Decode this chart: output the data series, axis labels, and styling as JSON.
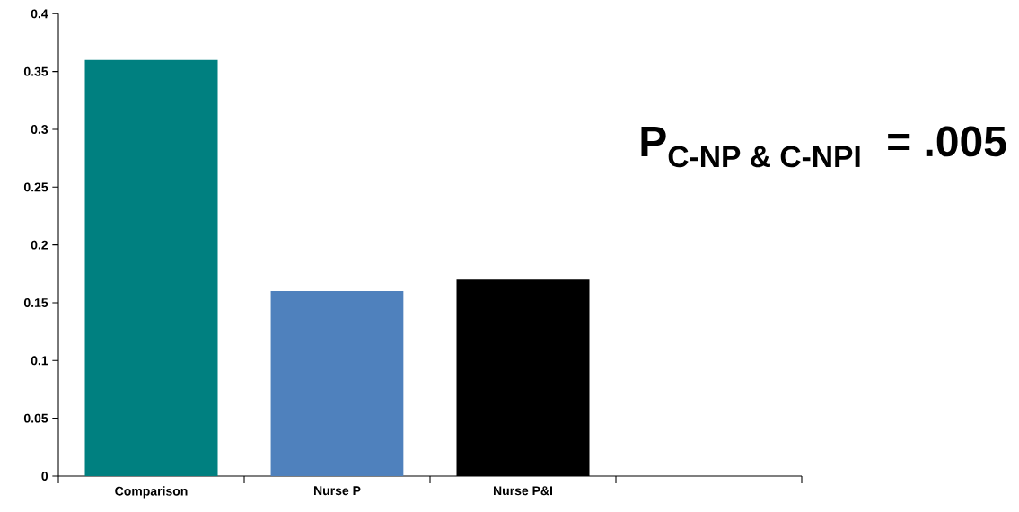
{
  "chart_data": {
    "type": "bar",
    "categories": [
      "Comparison",
      "Nurse P",
      "Nurse P&I",
      null
    ],
    "values": [
      0.36,
      0.16,
      0.17,
      null
    ],
    "colors": [
      "#008080",
      "#4f81bd",
      "#000000",
      null
    ],
    "ylim": [
      0,
      0.4
    ],
    "yticks": [
      0,
      0.05,
      0.1,
      0.15,
      0.2,
      0.25,
      0.3,
      0.35,
      0.4
    ],
    "annotations": [
      "\\textbf{P}_{\\textbf{C-NP \\& C-NPI}}\\textbf{\\ \\ = .005}"
    ]
  }
}
